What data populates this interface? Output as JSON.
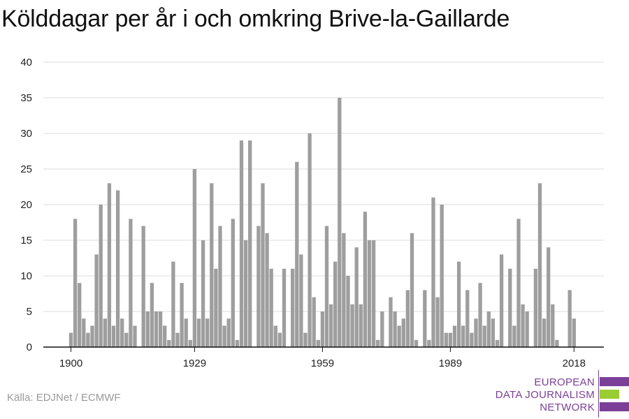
{
  "chart_data": {
    "type": "bar",
    "title": "Kölddagar per år i och omkring Brive-la-Gaillarde",
    "xlabel": "",
    "ylabel": "",
    "x_start": 1900,
    "x_end": 2018,
    "x_tick_labels": [
      "1900",
      "1929",
      "1959",
      "1989",
      "2018"
    ],
    "y_ticks": [
      0,
      5,
      10,
      15,
      20,
      25,
      30,
      35,
      40
    ],
    "ylim": [
      0,
      40
    ],
    "grid": true,
    "bar_color": "#9e9e9e",
    "values": [
      2,
      18,
      9,
      4,
      2,
      3,
      13,
      20,
      4,
      23,
      3,
      22,
      4,
      2,
      18,
      3,
      0,
      17,
      5,
      9,
      5,
      5,
      3,
      1,
      12,
      2,
      9,
      4,
      1,
      25,
      4,
      15,
      4,
      23,
      11,
      17,
      3,
      4,
      18,
      1,
      29,
      15,
      29,
      0,
      17,
      23,
      16,
      11,
      3,
      2,
      11,
      0,
      11,
      26,
      13,
      2,
      30,
      7,
      1,
      5,
      17,
      6,
      12,
      35,
      16,
      10,
      6,
      14,
      6,
      19,
      15,
      15,
      1,
      5,
      0,
      7,
      5,
      3,
      4,
      8,
      16,
      1,
      0,
      8,
      1,
      21,
      7,
      20,
      2,
      2,
      3,
      12,
      3,
      8,
      2,
      4,
      9,
      3,
      5,
      4,
      1,
      13,
      0,
      11,
      3,
      18,
      6,
      5,
      0,
      11,
      23,
      4,
      14,
      6,
      1,
      0,
      0,
      8,
      4
    ]
  },
  "source": "Källa: EDJNet / ECMWF",
  "logo": {
    "line1": "EUROPEAN",
    "line2": "DATA JOURNALISM",
    "line3": "NETWORK",
    "purple": "#7b3f98",
    "green": "#9acd32"
  }
}
